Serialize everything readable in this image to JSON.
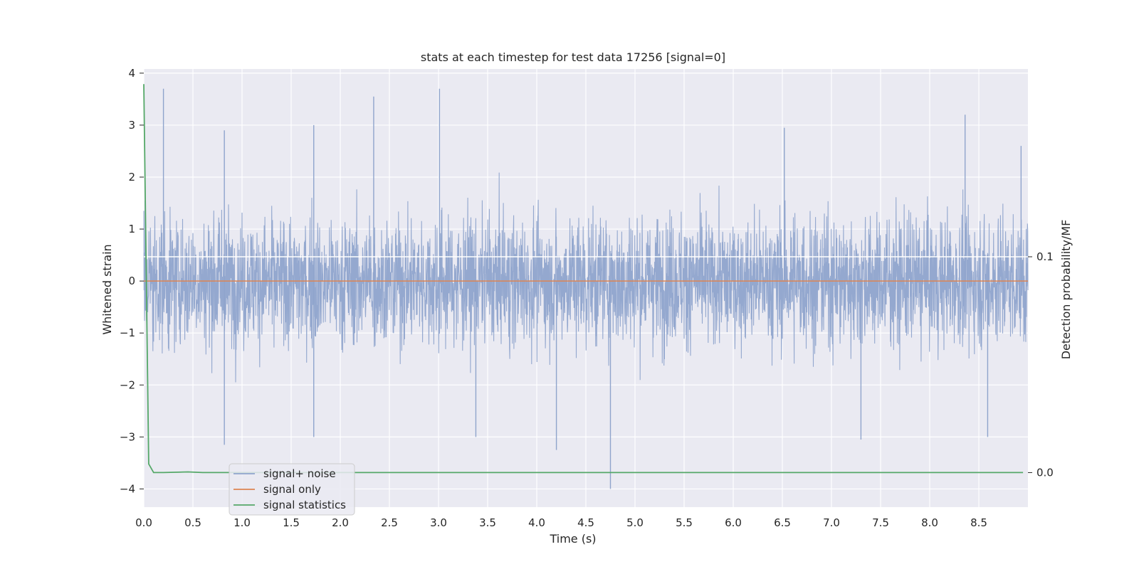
{
  "chart_data": {
    "type": "line",
    "title": "stats at each timestep for test data 17256 [signal=0]",
    "xlabel": "Time (s)",
    "ylabel": "Whitened strain",
    "ylabel_right": "Detection probability/MF",
    "xlim": [
      0.0,
      9.0
    ],
    "ylim": [
      -4.35,
      4.08
    ],
    "ylim_right": [
      -0.016,
      0.187
    ],
    "x_ticks": [
      "0.0",
      "0.5",
      "1.0",
      "1.5",
      "2.0",
      "2.5",
      "3.0",
      "3.5",
      "4.0",
      "4.5",
      "5.0",
      "5.5",
      "6.0",
      "6.5",
      "7.0",
      "7.5",
      "8.0",
      "8.5"
    ],
    "y_ticks": [
      "4",
      "3",
      "2",
      "1",
      "0",
      "−1",
      "−2",
      "−3",
      "−4"
    ],
    "y_ticks_right": [
      "0.1",
      "0.0"
    ],
    "grid": true,
    "legend_position": "lower-left",
    "series": [
      {
        "name": "signal+ noise",
        "color": "#8fa4cc",
        "axis": "left",
        "description_values": {
          "duration_s": 9.0,
          "typical_band": [
            -1.5,
            1.7
          ],
          "peaks": [
            {
              "x": 0.2,
              "y": 3.7
            },
            {
              "x": 0.82,
              "y": 2.9
            },
            {
              "x": 1.73,
              "y": 3.0
            },
            {
              "x": 2.34,
              "y": 3.55
            },
            {
              "x": 3.01,
              "y": 3.7
            },
            {
              "x": 6.52,
              "y": 2.95
            },
            {
              "x": 8.36,
              "y": 3.2
            },
            {
              "x": 8.93,
              "y": 2.6
            }
          ],
          "troughs": [
            {
              "x": 0.82,
              "y": -3.15
            },
            {
              "x": 1.73,
              "y": -3.0
            },
            {
              "x": 3.38,
              "y": -3.0
            },
            {
              "x": 4.2,
              "y": -3.25
            },
            {
              "x": 4.75,
              "y": -4.0
            },
            {
              "x": 7.3,
              "y": -3.05
            },
            {
              "x": 8.59,
              "y": -3.0
            }
          ]
        }
      },
      {
        "name": "signal only",
        "color": "#dd8452",
        "axis": "left",
        "x": [
          0.0,
          9.0
        ],
        "y": [
          0.0,
          0.0
        ]
      },
      {
        "name": "signal statistics",
        "color": "#55a868",
        "axis": "right",
        "x": [
          0.0,
          0.05,
          0.1,
          0.2,
          0.45,
          0.6,
          1.0,
          2.0,
          3.0,
          4.0,
          5.0,
          6.0,
          7.0,
          8.0,
          8.95
        ],
        "y": [
          0.18,
          0.004,
          0.0,
          0.0,
          0.0003,
          0.0,
          0.0,
          0.0,
          0.0,
          0.0,
          0.0,
          0.0,
          0.0,
          0.0,
          0.0
        ]
      }
    ],
    "reference_line": {
      "axis": "right",
      "y": 0.1,
      "color": "#ffffff"
    }
  }
}
